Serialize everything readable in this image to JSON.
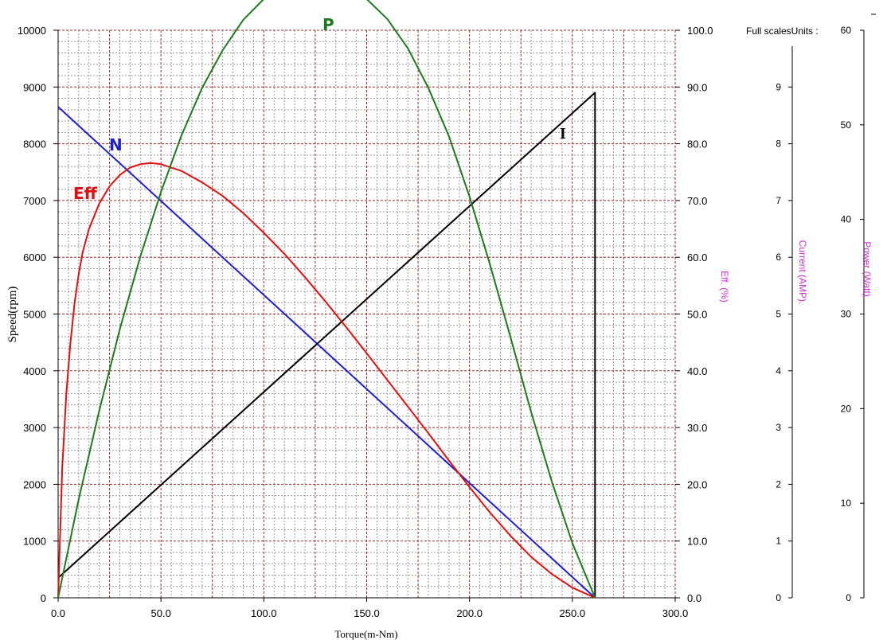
{
  "chart_data": {
    "type": "line",
    "full_scales_label": "Full scalesUnits :",
    "x_axis": {
      "label": "Torque(m-Nm)",
      "range": [
        0,
        300
      ],
      "ticks": [
        "0.0",
        "50.0",
        "100.0",
        "150.0",
        "200.0",
        "250.0",
        "300.0"
      ]
    },
    "axes": {
      "speed": {
        "label": "Speed(rpm)",
        "range": [
          0,
          10000
        ],
        "ticks": [
          "0",
          "1000",
          "2000",
          "3000",
          "4000",
          "5000",
          "6000",
          "7000",
          "8000",
          "9000",
          "10000"
        ]
      },
      "eff": {
        "label": "Eff. (%)",
        "range": [
          0,
          100
        ],
        "ticks": [
          "0.0",
          "10.0",
          "20.0",
          "30.0",
          "40.0",
          "50.0",
          "60.0",
          "70.0",
          "80.0",
          "90.0",
          "100.0"
        ]
      },
      "current": {
        "label": "Current (AMP).",
        "range": [
          0,
          10
        ],
        "ticks": [
          "0",
          "1",
          "2",
          "3",
          "4",
          "5",
          "6",
          "7",
          "8",
          "9"
        ]
      },
      "power": {
        "label": "Power (Watt)",
        "range": [
          0,
          60
        ],
        "ticks": [
          "0",
          "10",
          "20",
          "30",
          "40",
          "50",
          "60"
        ]
      }
    },
    "grid": true,
    "series": [
      {
        "name": "N",
        "color": "#1f1fd1",
        "axis": "speed",
        "points": [
          [
            0,
            8650
          ],
          [
            261,
            0
          ]
        ]
      },
      {
        "name": "I",
        "color": "#000000",
        "axis": "current",
        "points": [
          [
            0,
            0.35
          ],
          [
            261,
            8.9
          ],
          [
            261,
            0
          ]
        ]
      },
      {
        "name": "Eff",
        "color": "#e01010",
        "axis": "eff",
        "points": [
          [
            0,
            0
          ],
          [
            2,
            23
          ],
          [
            4,
            36
          ],
          [
            6,
            45
          ],
          [
            8,
            52
          ],
          [
            10,
            57
          ],
          [
            12,
            61
          ],
          [
            15,
            65
          ],
          [
            20,
            69.5
          ],
          [
            25,
            72.5
          ],
          [
            30,
            74.5
          ],
          [
            35,
            75.8
          ],
          [
            40,
            76.4
          ],
          [
            45,
            76.6
          ],
          [
            50,
            76.4
          ],
          [
            60,
            75.2
          ],
          [
            70,
            73.2
          ],
          [
            80,
            70.8
          ],
          [
            90,
            67.8
          ],
          [
            100,
            64.3
          ],
          [
            110,
            60.6
          ],
          [
            120,
            56.5
          ],
          [
            130,
            52.2
          ],
          [
            140,
            47.7
          ],
          [
            150,
            43.1
          ],
          [
            160,
            38.4
          ],
          [
            170,
            33.7
          ],
          [
            180,
            29
          ],
          [
            190,
            24.2
          ],
          [
            200,
            19.5
          ],
          [
            210,
            15
          ],
          [
            220,
            10.9
          ],
          [
            230,
            7.2
          ],
          [
            240,
            4.2
          ],
          [
            250,
            1.8
          ],
          [
            261,
            0
          ]
        ]
      },
      {
        "name": "P",
        "color": "#1d7a1d",
        "axis": "power",
        "points": [
          [
            0,
            0
          ],
          [
            10,
            10.4
          ],
          [
            20,
            19.8
          ],
          [
            30,
            28.4
          ],
          [
            40,
            36.1
          ],
          [
            50,
            42.9
          ],
          [
            60,
            48.9
          ],
          [
            70,
            53.9
          ],
          [
            80,
            57.9
          ],
          [
            90,
            61.1
          ],
          [
            100,
            63.3
          ],
          [
            110,
            64.6
          ],
          [
            120,
            65
          ],
          [
            130,
            65.5
          ],
          [
            140,
            64.8
          ],
          [
            150,
            63.3
          ],
          [
            160,
            61.2
          ],
          [
            170,
            58.1
          ],
          [
            180,
            53.9
          ],
          [
            190,
            48.8
          ],
          [
            200,
            42.4
          ],
          [
            210,
            35.2
          ],
          [
            220,
            27.5
          ],
          [
            230,
            19.6
          ],
          [
            240,
            12.3
          ],
          [
            250,
            5.8
          ],
          [
            261,
            0
          ]
        ]
      }
    ]
  }
}
